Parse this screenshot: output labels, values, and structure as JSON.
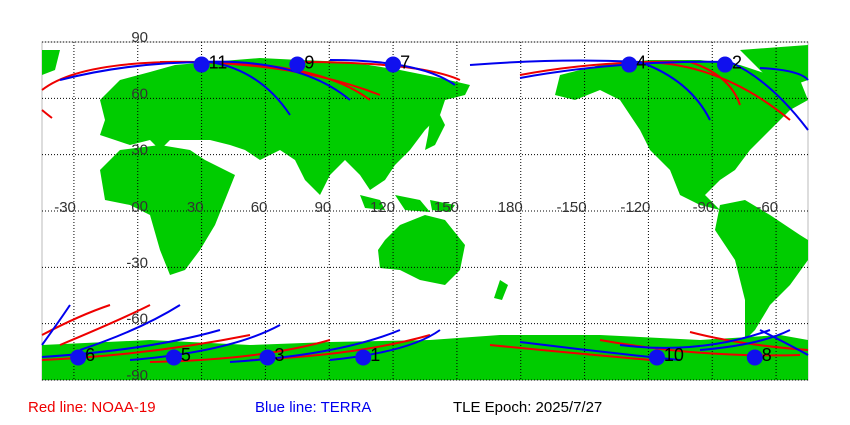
{
  "map": {
    "lon_ticks": [
      -30,
      0,
      30,
      60,
      90,
      120,
      150,
      180,
      -150,
      -120,
      -90,
      -60
    ],
    "lat_ticks": [
      90,
      60,
      30,
      0,
      -30,
      -60,
      -90
    ],
    "points": [
      {
        "label": "11",
        "lon": 30,
        "lat": 78
      },
      {
        "label": "9",
        "lon": 75,
        "lat": 78
      },
      {
        "label": "7",
        "lon": 120,
        "lat": 78
      },
      {
        "label": "4",
        "lon": -129,
        "lat": 78
      },
      {
        "label": "2",
        "lon": -84,
        "lat": 78
      },
      {
        "label": "6",
        "lon": -28,
        "lat": -78
      },
      {
        "label": "5",
        "lon": 17,
        "lat": -78
      },
      {
        "label": "3",
        "lon": 61,
        "lat": -78
      },
      {
        "label": "1",
        "lon": 106,
        "lat": -78
      },
      {
        "label": "10",
        "lon": -116,
        "lat": -78
      },
      {
        "label": "8",
        "lon": -70,
        "lat": -78
      }
    ],
    "legend": [
      "Red line: NOAA-19",
      "Blue line: TERRA",
      "TLE Epoch: 2025/7/27"
    ]
  }
}
